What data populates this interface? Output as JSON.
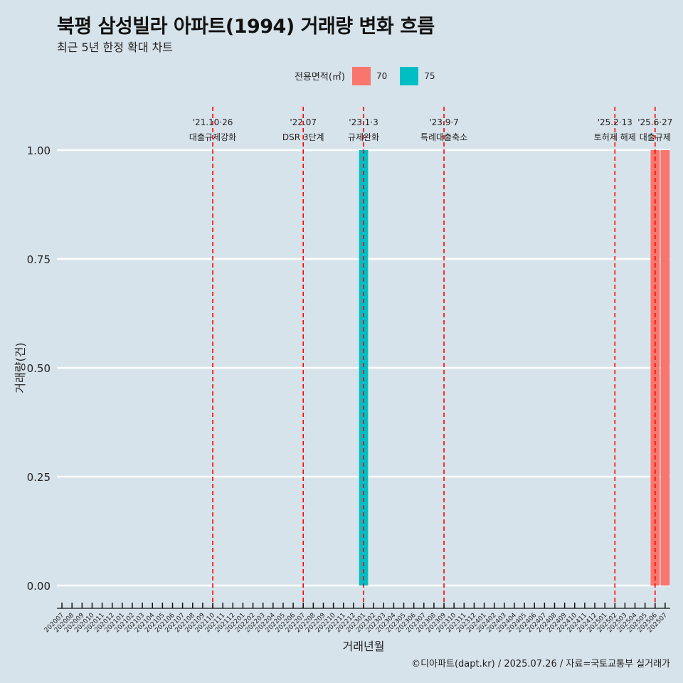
{
  "title": "북평 삼성빌라 아파트(1994) 거래량 변화 흐름",
  "subtitle": "최근 5년 한정 확대 차트",
  "caption": "©디아파트(dapt.kr) / 2025.07.26 / 자료=국토교통부 실거래가",
  "legend": {
    "title": "전용면적(㎡)",
    "items": [
      {
        "label": "70",
        "color": "#f8766d"
      },
      {
        "label": "75",
        "color": "#00bfc4"
      }
    ]
  },
  "chart_data": {
    "type": "bar",
    "xlabel": "거래년월",
    "ylabel": "거래량(건)",
    "ylim": [
      0,
      1
    ],
    "y_ticks": [
      "0.00",
      "0.25",
      "0.50",
      "0.75",
      "1.00"
    ],
    "categories": [
      "202007",
      "202008",
      "202009",
      "202010",
      "202011",
      "202012",
      "202101",
      "202102",
      "202103",
      "202104",
      "202105",
      "202106",
      "202107",
      "202108",
      "202109",
      "202110",
      "202111",
      "202112",
      "202201",
      "202202",
      "202203",
      "202204",
      "202205",
      "202206",
      "202207",
      "202208",
      "202209",
      "202210",
      "202211",
      "202212",
      "202301",
      "202302",
      "202303",
      "202304",
      "202305",
      "202306",
      "202307",
      "202308",
      "202309",
      "202310",
      "202311",
      "202312",
      "202401",
      "202402",
      "202403",
      "202404",
      "202405",
      "202406",
      "202407",
      "202408",
      "202409",
      "202410",
      "202411",
      "202412",
      "202501",
      "202502",
      "202503",
      "202504",
      "202505",
      "202506",
      "202507"
    ],
    "series": [
      {
        "name": "70",
        "color": "#f8766d",
        "points": [
          {
            "x": "202506",
            "y": 1
          },
          {
            "x": "202507",
            "y": 1
          }
        ]
      },
      {
        "name": "75",
        "color": "#00bfc4",
        "points": [
          {
            "x": "202301",
            "y": 1
          }
        ]
      }
    ],
    "events": [
      {
        "date_label": "'21.10·26",
        "text": "대출규제강화",
        "x": "202110"
      },
      {
        "date_label": "'22.07",
        "text": "DSR 3단계",
        "x": "202207"
      },
      {
        "date_label": "'23.1·3",
        "text": "규제완화",
        "x": "202301"
      },
      {
        "date_label": "'23.9·7",
        "text": "특례대출축소",
        "x": "202309"
      },
      {
        "date_label": "'25.2·13",
        "text": "토허제 해제",
        "x": "202502"
      },
      {
        "date_label": "'25.6·27",
        "text": "대출규제",
        "x": "202506"
      }
    ],
    "grid": true,
    "legend_position": "top"
  }
}
